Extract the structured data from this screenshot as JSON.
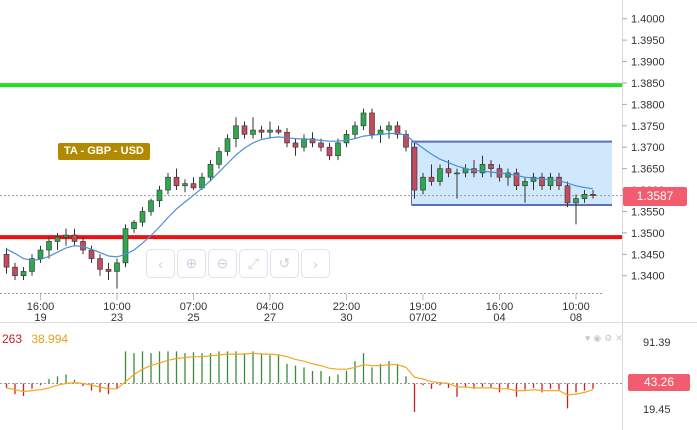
{
  "chart_data": [
    {
      "type": "candlestick",
      "label": "TA - GBP - USD",
      "current_price": "1.3587",
      "ylim": [
        1.3355,
        1.4025
      ],
      "y_ticks": [
        "1.4000",
        "1.3950",
        "1.3900",
        "1.3850",
        "1.3800",
        "1.3750",
        "1.3700",
        "1.3650",
        "1.3600",
        "1.3550",
        "1.3500",
        "1.3450",
        "1.3400"
      ],
      "x_ticks": [
        {
          "time": "16:00",
          "day": "19",
          "i": 4
        },
        {
          "time": "10:00",
          "day": "23",
          "i": 13
        },
        {
          "time": "07:00",
          "day": "25",
          "i": 22
        },
        {
          "time": "04:00",
          "day": "27",
          "i": 31
        },
        {
          "time": "22:00",
          "day": "30",
          "i": 40
        },
        {
          "time": "19:00",
          "day": "07/02",
          "i": 49
        },
        {
          "time": "16:00",
          "day": "04",
          "i": 58
        },
        {
          "time": "10:00",
          "day": "08",
          "i": 67
        }
      ],
      "candles": [
        [
          1.345,
          1.3465,
          1.3405,
          1.342
        ],
        [
          1.342,
          1.343,
          1.339,
          1.34
        ],
        [
          1.34,
          1.342,
          1.339,
          1.341
        ],
        [
          1.341,
          1.345,
          1.34,
          1.344
        ],
        [
          1.344,
          1.347,
          1.343,
          1.346
        ],
        [
          1.346,
          1.349,
          1.344,
          1.348
        ],
        [
          1.348,
          1.35,
          1.346,
          1.349
        ],
        [
          1.349,
          1.351,
          1.347,
          1.3495
        ],
        [
          1.3495,
          1.351,
          1.347,
          1.348
        ],
        [
          1.348,
          1.349,
          1.345,
          1.346
        ],
        [
          1.346,
          1.347,
          1.343,
          1.344
        ],
        [
          1.344,
          1.345,
          1.34,
          1.3415
        ],
        [
          1.3415,
          1.343,
          1.339,
          1.341
        ],
        [
          1.341,
          1.344,
          1.337,
          1.343
        ],
        [
          1.343,
          1.352,
          1.342,
          1.351
        ],
        [
          1.351,
          1.353,
          1.35,
          1.3525
        ],
        [
          1.3525,
          1.356,
          1.3515,
          1.355
        ],
        [
          1.355,
          1.358,
          1.354,
          1.3575
        ],
        [
          1.3575,
          1.361,
          1.356,
          1.36
        ],
        [
          1.36,
          1.364,
          1.359,
          1.363
        ],
        [
          1.363,
          1.365,
          1.36,
          1.361
        ],
        [
          1.361,
          1.3625,
          1.3595,
          1.3615
        ],
        [
          1.3615,
          1.363,
          1.36,
          1.3605
        ],
        [
          1.3605,
          1.364,
          1.36,
          1.363
        ],
        [
          1.363,
          1.367,
          1.362,
          1.366
        ],
        [
          1.366,
          1.37,
          1.365,
          1.369
        ],
        [
          1.369,
          1.373,
          1.368,
          1.372
        ],
        [
          1.372,
          1.377,
          1.37,
          1.375
        ],
        [
          1.375,
          1.376,
          1.372,
          1.373
        ],
        [
          1.373,
          1.377,
          1.372,
          1.374
        ],
        [
          1.374,
          1.375,
          1.372,
          1.3735
        ],
        [
          1.3735,
          1.376,
          1.372,
          1.374
        ],
        [
          1.374,
          1.375,
          1.373,
          1.3735
        ],
        [
          1.3735,
          1.3745,
          1.37,
          1.371
        ],
        [
          1.371,
          1.372,
          1.368,
          1.37
        ],
        [
          1.37,
          1.373,
          1.369,
          1.372
        ],
        [
          1.372,
          1.3735,
          1.37,
          1.371
        ],
        [
          1.371,
          1.372,
          1.369,
          1.37
        ],
        [
          1.37,
          1.371,
          1.367,
          1.368
        ],
        [
          1.368,
          1.372,
          1.367,
          1.371
        ],
        [
          1.371,
          1.374,
          1.37,
          1.373
        ],
        [
          1.373,
          1.376,
          1.372,
          1.375
        ],
        [
          1.375,
          1.379,
          1.374,
          1.378
        ],
        [
          1.378,
          1.379,
          1.372,
          1.373
        ],
        [
          1.373,
          1.375,
          1.371,
          1.374
        ],
        [
          1.374,
          1.376,
          1.372,
          1.375
        ],
        [
          1.375,
          1.376,
          1.372,
          1.373
        ],
        [
          1.373,
          1.374,
          1.369,
          1.37
        ],
        [
          1.37,
          1.371,
          1.358,
          1.36
        ],
        [
          1.36,
          1.364,
          1.359,
          1.363
        ],
        [
          1.363,
          1.366,
          1.361,
          1.362
        ],
        [
          1.362,
          1.366,
          1.361,
          1.365
        ],
        [
          1.365,
          1.367,
          1.363,
          1.364
        ],
        [
          1.364,
          1.365,
          1.358,
          1.364
        ],
        [
          1.364,
          1.366,
          1.363,
          1.365
        ],
        [
          1.365,
          1.367,
          1.363,
          1.364
        ],
        [
          1.364,
          1.368,
          1.363,
          1.366
        ],
        [
          1.366,
          1.367,
          1.363,
          1.365
        ],
        [
          1.365,
          1.366,
          1.362,
          1.363
        ],
        [
          1.363,
          1.365,
          1.361,
          1.364
        ],
        [
          1.364,
          1.365,
          1.36,
          1.361
        ],
        [
          1.361,
          1.363,
          1.357,
          1.362
        ],
        [
          1.362,
          1.364,
          1.36,
          1.363
        ],
        [
          1.363,
          1.364,
          1.36,
          1.361
        ],
        [
          1.361,
          1.364,
          1.36,
          1.363
        ],
        [
          1.363,
          1.364,
          1.36,
          1.361
        ],
        [
          1.361,
          1.362,
          1.356,
          1.357
        ],
        [
          1.357,
          1.359,
          1.352,
          1.358
        ],
        [
          1.358,
          1.36,
          1.357,
          1.359
        ],
        [
          1.359,
          1.36,
          1.358,
          1.3587
        ]
      ],
      "ma": [
        1.3462,
        1.3452,
        1.344,
        1.3436,
        1.3438,
        1.3445,
        1.3455,
        1.3465,
        1.347,
        1.3468,
        1.3462,
        1.3454,
        1.3446,
        1.3444,
        1.345,
        1.346,
        1.3476,
        1.3494,
        1.3514,
        1.3536,
        1.3556,
        1.3572,
        1.3588,
        1.3604,
        1.3622,
        1.3642,
        1.3662,
        1.3682,
        1.3698,
        1.371,
        1.3718,
        1.3722,
        1.3724,
        1.3722,
        1.372,
        1.3719,
        1.3718,
        1.3716,
        1.3714,
        1.3714,
        1.3716,
        1.372,
        1.3726,
        1.3728,
        1.373,
        1.3732,
        1.3732,
        1.3728,
        1.3712,
        1.3698,
        1.3684,
        1.3672,
        1.3664,
        1.3656,
        1.365,
        1.3646,
        1.3644,
        1.3642,
        1.364,
        1.3638,
        1.3634,
        1.363,
        1.3628,
        1.3626,
        1.3624,
        1.3622,
        1.3616,
        1.361,
        1.3606,
        1.3603
      ],
      "levels": [
        {
          "name": "resistance",
          "value": 1.3845,
          "color": "#22dd22"
        },
        {
          "name": "support",
          "value": 1.349,
          "color": "#ee1111"
        },
        {
          "name": "current",
          "value": 1.3587,
          "color": "#999999"
        }
      ],
      "range_box": {
        "i_start": 48,
        "i_end": 71,
        "top": 1.3713,
        "bottom": 1.3565
      },
      "colors": {
        "up": "#2ea84f",
        "down": "#c44a5e",
        "ma": "#4a90d9"
      }
    },
    {
      "type": "histogram-oscillator",
      "values_shown": [
        "263",
        "38.994"
      ],
      "y_ticks": [
        "91.39",
        "19.45"
      ],
      "current_value": "43.26",
      "ylim": [
        0,
        110
      ],
      "zero": 50,
      "osc": [
        45,
        38,
        36,
        44,
        48,
        55,
        58,
        60,
        54,
        47,
        42,
        40,
        38,
        44,
        86,
        84,
        86,
        84,
        86,
        86,
        86,
        84,
        85,
        84,
        84,
        86,
        86,
        86,
        84,
        86,
        84,
        82,
        82,
        72,
        70,
        68,
        64,
        64,
        58,
        60,
        64,
        75,
        84,
        68,
        72,
        75,
        72,
        58,
        18,
        48,
        44,
        48,
        45,
        35,
        46,
        44,
        46,
        45,
        40,
        44,
        35,
        43,
        45,
        40,
        44,
        43,
        22,
        40,
        42,
        44
      ],
      "signal": [
        45,
        43,
        41,
        42,
        43,
        45,
        48,
        50,
        51,
        50,
        48,
        46,
        44,
        44,
        52,
        60,
        66,
        70,
        73,
        76,
        78,
        79,
        80,
        80,
        81,
        82,
        83,
        83,
        83,
        84,
        83,
        83,
        82,
        80,
        77,
        75,
        72,
        70,
        67,
        66,
        66,
        68,
        71,
        70,
        70,
        71,
        71,
        68,
        57,
        55,
        52,
        51,
        50,
        46,
        46,
        45,
        45,
        45,
        44,
        44,
        42,
        42,
        43,
        42,
        42,
        42,
        37,
        38,
        40,
        43
      ],
      "colors": {
        "up": "#3a8a3a",
        "down": "#c82020",
        "signal": "#f5a623"
      }
    }
  ],
  "icons": [
    "chevron-left-icon",
    "zoom-in-icon",
    "zoom-out-icon",
    "zoom-fit-icon",
    "reset-zoom-icon",
    "chevron-right-icon"
  ]
}
